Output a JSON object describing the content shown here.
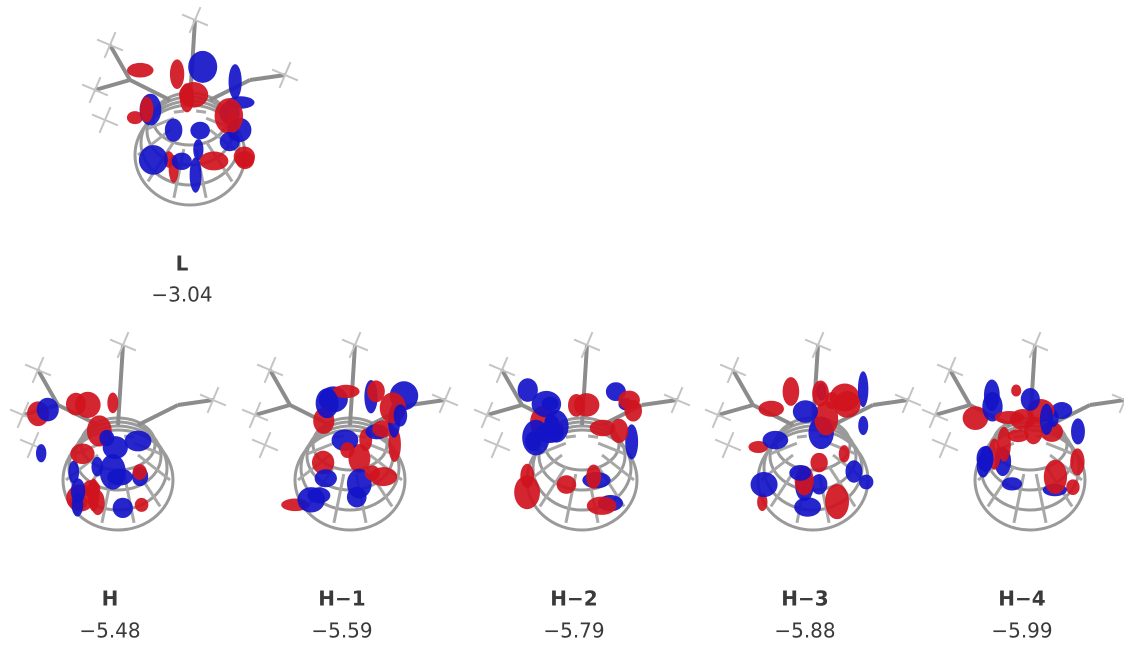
{
  "panels": [
    {
      "label": "L",
      "energy": "−3.04"
    },
    {
      "label": "H",
      "energy": "−5.48"
    },
    {
      "label": "H−1",
      "energy": "−5.59"
    },
    {
      "label": "H−2",
      "energy": "−5.79"
    },
    {
      "label": "H−3",
      "energy": "−5.88"
    },
    {
      "label": "H−4",
      "energy": "−5.99"
    }
  ]
}
